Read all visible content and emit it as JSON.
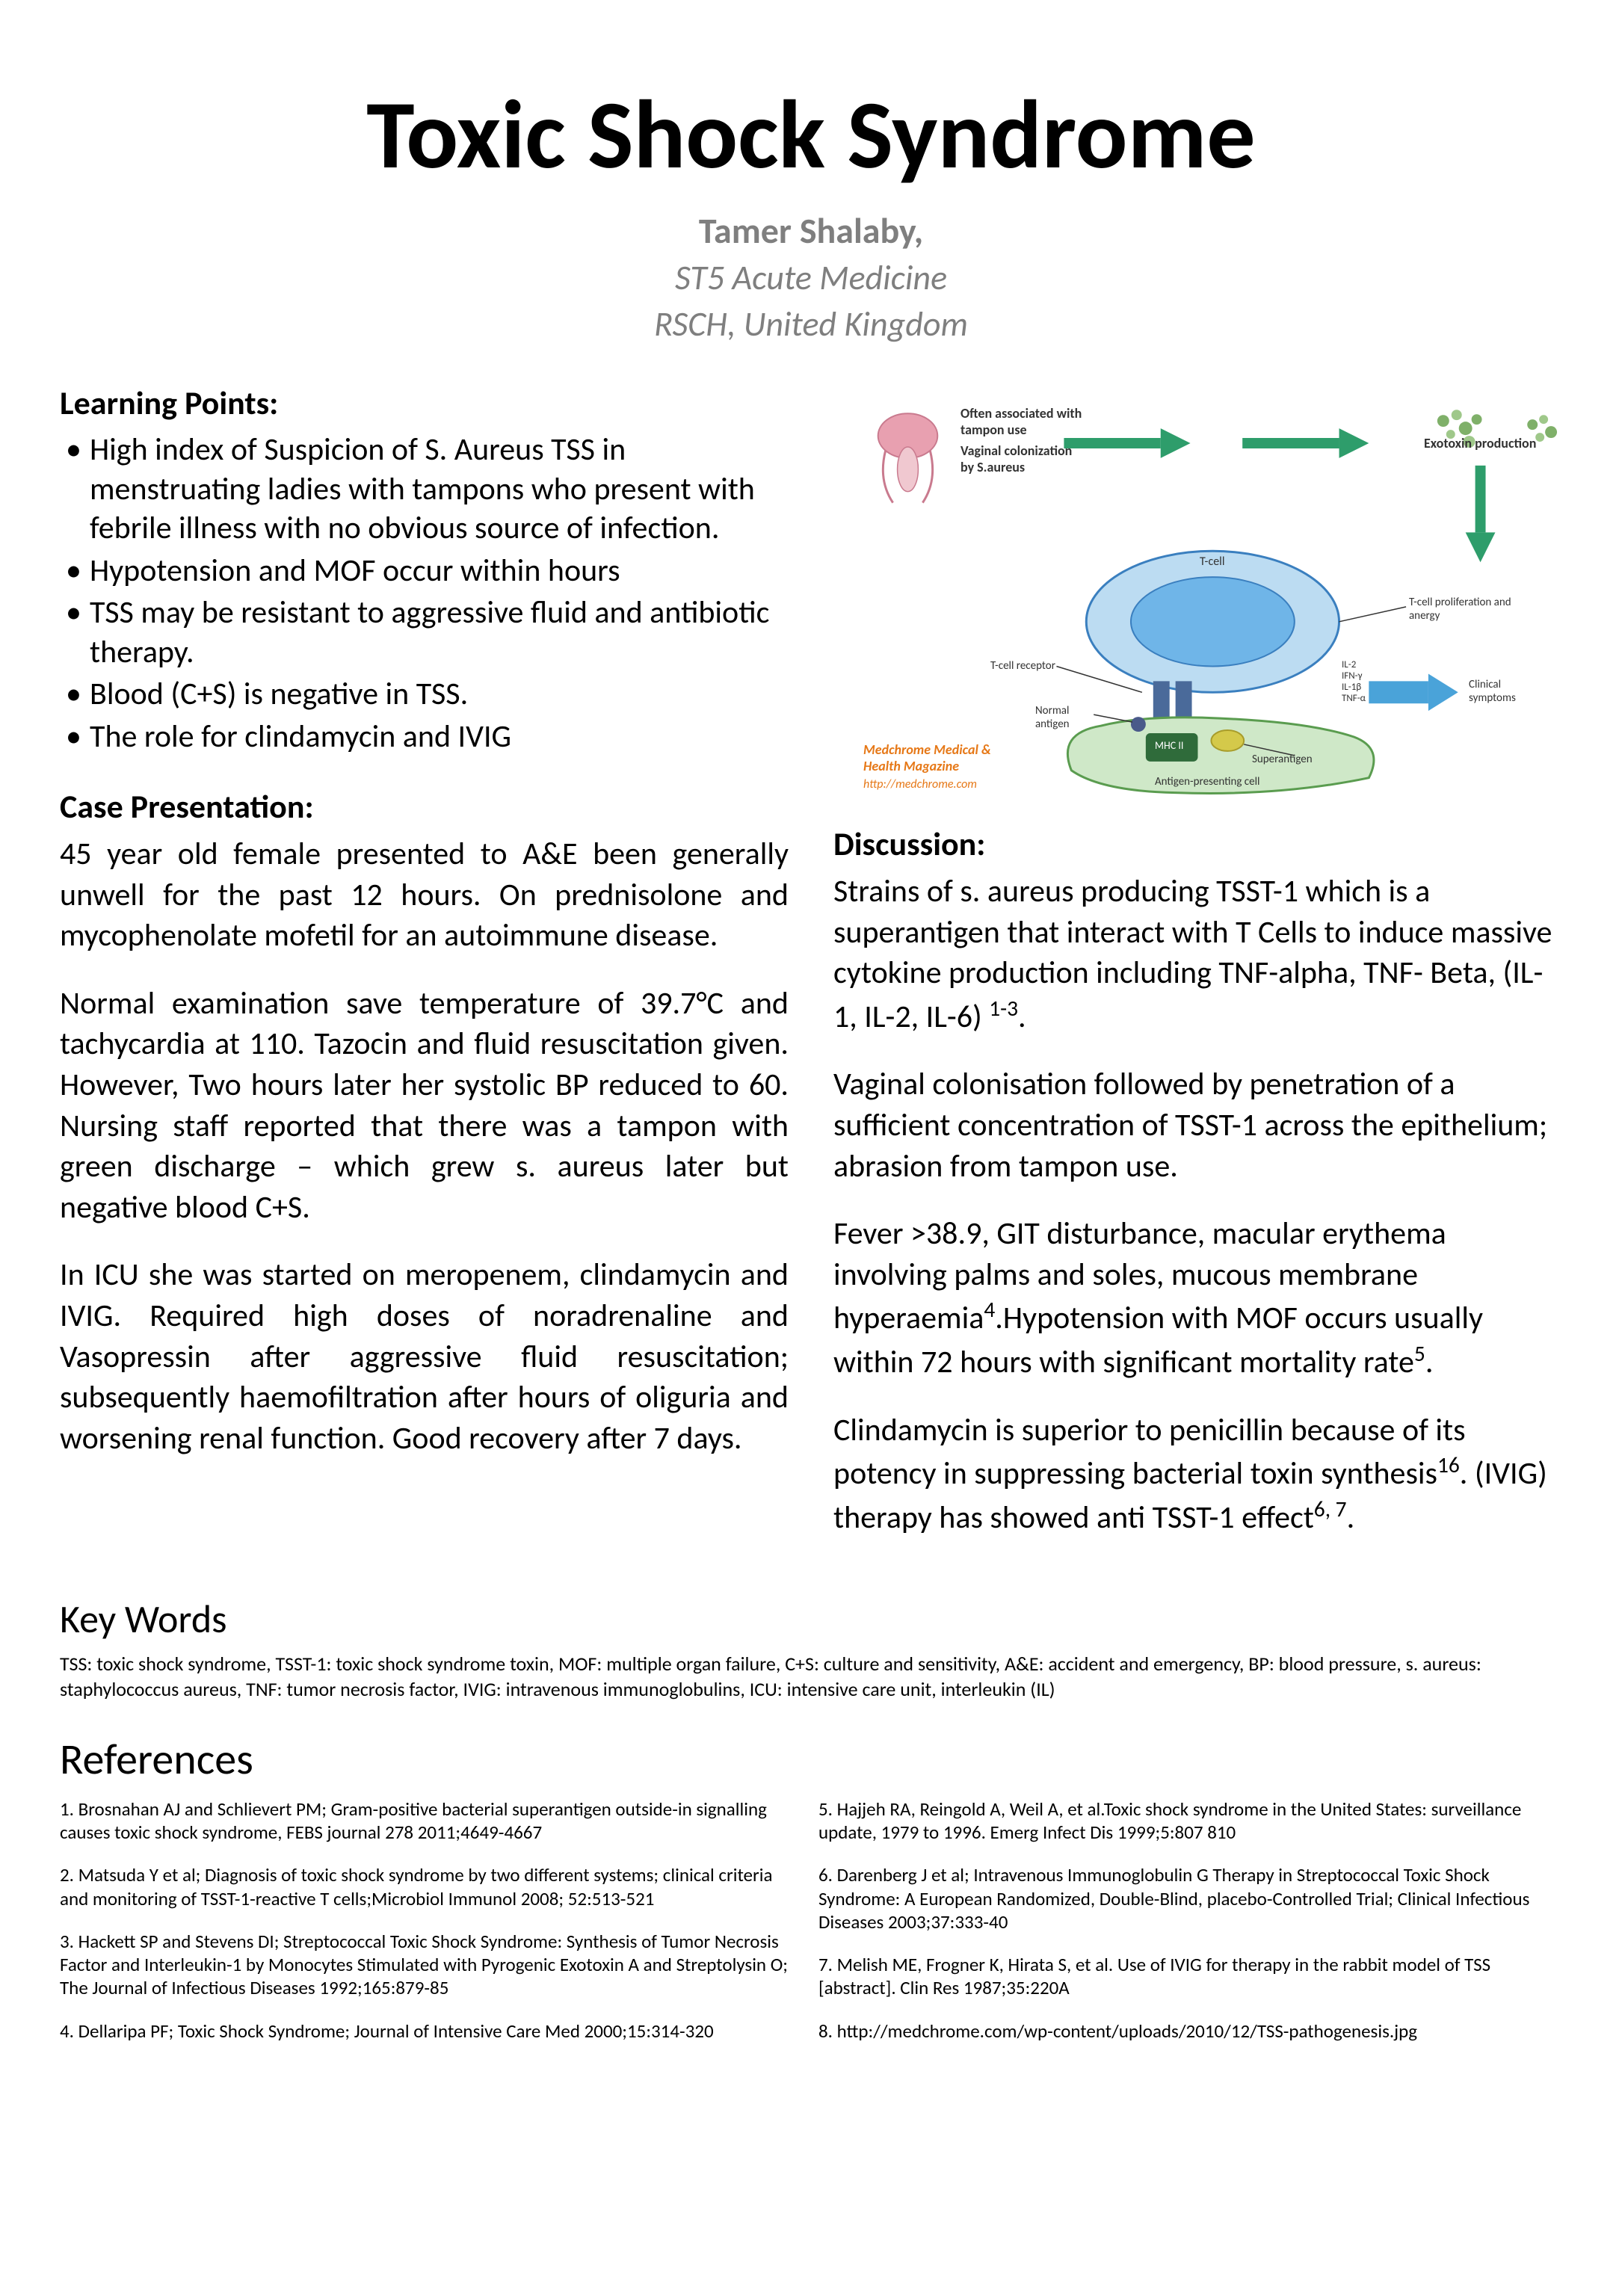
{
  "title": "Toxic Shock Syndrome",
  "author": {
    "name": "Tamer Shalaby,",
    "role": "ST5 Acute Medicine",
    "institution": "RSCH, United Kingdom"
  },
  "learning_points": {
    "heading": "Learning Points:",
    "items": [
      "High index of Suspicion of S. Aureus TSS in menstruating ladies with tampons who present with febrile illness with no obvious source of infection.",
      "Hypotension and MOF occur within hours",
      "TSS may be resistant to aggressive fluid and antibiotic therapy.",
      "Blood (C+S) is negative in TSS.",
      "The role for clindamycin and IVIG"
    ]
  },
  "case": {
    "heading": "Case Presentation:",
    "p1": "45 year old female presented to A&E been generally unwell for the past 12 hours. On prednisolone and mycophenolate mofetil for an autoimmune disease.",
    "p2": "Normal examination save temperature of 39.7°C and tachycardia at 110. Tazocin and fluid resuscitation given. However, Two hours later her systolic BP reduced to 60. Nursing staff reported that there was a tampon with green discharge – which grew s. aureus later but negative blood C+S.",
    "p3": "In ICU she was started on meropenem, clindamycin and IVIG.  Required high doses of noradrenaline and Vasopressin after aggressive fluid resuscitation; subsequently haemofiltration after hours of oliguria and worsening renal function. Good recovery after 7 days."
  },
  "discussion": {
    "heading": "Discussion:",
    "p1_html": "Strains of s. aureus producing TSST-1 which is a superantigen that interact with T Cells to induce massive cytokine production including TNF-alpha, TNF- Beta, (IL-1, IL-2, IL-6) <sup>1-3</sup>.",
    "p2": "Vaginal colonisation followed by penetration of a sufficient concentration of TSST-1 across the epithelium; abrasion from tampon use.",
    "p3_html": "Fever >38.9, GIT disturbance, macular erythema involving palms and soles, mucous membrane hyperaemia<sup>4</sup>.Hypotension with MOF occurs usually within 72 hours with significant mortality rate<sup>5</sup>.",
    "p4_html": "Clindamycin is superior to penicillin because of its potency in suppressing bacterial toxin synthesis<sup>16</sup>. (IVIG) therapy has showed anti TSST-1 effect<sup>6, 7</sup>."
  },
  "keywords": {
    "heading": "Key Words",
    "text": "TSS: toxic shock syndrome, TSST-1: toxic shock syndrome toxin, MOF: multiple organ failure, C+S: culture and sensitivity, A&E: accident and emergency, BP: blood pressure, s. aureus: staphylococcus aureus, TNF: tumor necrosis factor, IVIG: intravenous immunoglobulins, ICU: intensive care unit, interleukin (IL)"
  },
  "references": {
    "heading": "References",
    "left": [
      "1. Brosnahan AJ and Schlievert PM; Gram-positive bacterial superantigen outside-in signalling causes toxic shock syndrome, FEBS journal 278 2011;4649-4667",
      "2. Matsuda Y et al; Diagnosis of toxic shock syndrome by two different systems; clinical criteria and monitoring of TSST-1-reactive T cells;Microbiol Immunol 2008; 52:513-521",
      "3. Hackett SP and Stevens DI; Streptococcal Toxic Shock Syndrome: Synthesis of Tumor Necrosis Factor and Interleukin-1 by Monocytes Stimulated with Pyrogenic Exotoxin A and Streptolysin O; The Journal of Infectious Diseases  1992;165:879-85",
      "4. Dellaripa PF; Toxic Shock Syndrome; Journal of Intensive Care Med 2000;15:314-320"
    ],
    "right": [
      "5. Hajjeh RA, Reingold A, Weil A, et al.Toxic shock syndrome in the United States: surveillance update, 1979 to 1996. Emerg Infect Dis 1999;5:807 810",
      "6. Darenberg J et al; Intravenous Immunoglobulin G Therapy in Streptococcal Toxic Shock Syndrome: A European Randomized, Double-Blind, placebo-Controlled Trial; Clinical Infectious Diseases 2003;37:333-40",
      "7. Melish ME, Frogner K, Hirata S, et al. Use of IVIG for therapy in the rabbit model of TSS [abstract]. Clin Res 1987;35:220A",
      "8. http://medchrome.com/wp-content/uploads/2010/12/TSS-pathogenesis.jpg"
    ]
  },
  "diagram": {
    "labels": {
      "tampon": "Often associated with tampon use",
      "vaginal": "Vaginal colonization by S.aureus",
      "exotoxin": "Exotoxin production",
      "tcell": "T-cell",
      "tcell_receptor": "T-cell receptor",
      "prolif": "T-cell proliferation and anergy",
      "normal_antigen": "Normal antigen",
      "mhc": "MHC II",
      "superantigen": "Superantigen",
      "cytokines": "IL-2\nIFN-γ\nIL-1β\nTNF-α",
      "clinical": "Clinical symptoms",
      "apc": "Antigen-presenting cell",
      "source": "Medchrome Medical & Health Magazine",
      "source_url": "http://medchrome.com"
    },
    "colors": {
      "arrow": "#2e9d6b",
      "tcell_fill": "#6fb5e8",
      "tcell_stroke": "#3a7fbf",
      "apc_fill": "#cfe8c8",
      "apc_stroke": "#5a9c4f",
      "mhc_fill": "#2f6b3a",
      "normal_antigen": "#4a5a8a",
      "superantigen": "#d4c94a",
      "source_color": "#e67817",
      "clinical_arrow": "#4aa3d9",
      "exotoxin": "#7fb069",
      "uterus": "#e8a0b0"
    }
  }
}
